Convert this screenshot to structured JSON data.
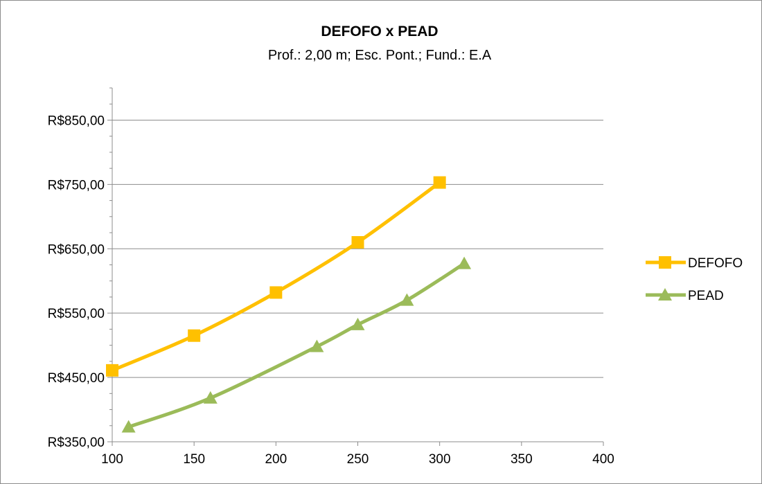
{
  "chart_data": {
    "type": "line",
    "title": "DEFOFO x PEAD",
    "subtitle": "Prof.: 2,00 m; Esc. Pont.; Fund.: E.A",
    "xlim": [
      100,
      400
    ],
    "ylim": [
      350,
      900
    ],
    "x_ticks": [
      "100",
      "150",
      "200",
      "250",
      "300",
      "350",
      "400"
    ],
    "y_ticks": [
      "R$350,00",
      "R$450,00",
      "R$550,00",
      "R$650,00",
      "R$750,00",
      "R$850,00"
    ],
    "grid": true,
    "legend_position": "right",
    "series": [
      {
        "name": "DEFOFO",
        "color": "#FFC000",
        "marker": "square",
        "x": [
          100,
          150,
          200,
          250,
          300
        ],
        "y": [
          461,
          515,
          582,
          660,
          753
        ]
      },
      {
        "name": "PEAD",
        "color": "#9BBB59",
        "marker": "triangle",
        "x": [
          110,
          160,
          225,
          250,
          280,
          315
        ],
        "y": [
          373,
          418,
          498,
          532,
          570,
          627
        ]
      }
    ]
  }
}
